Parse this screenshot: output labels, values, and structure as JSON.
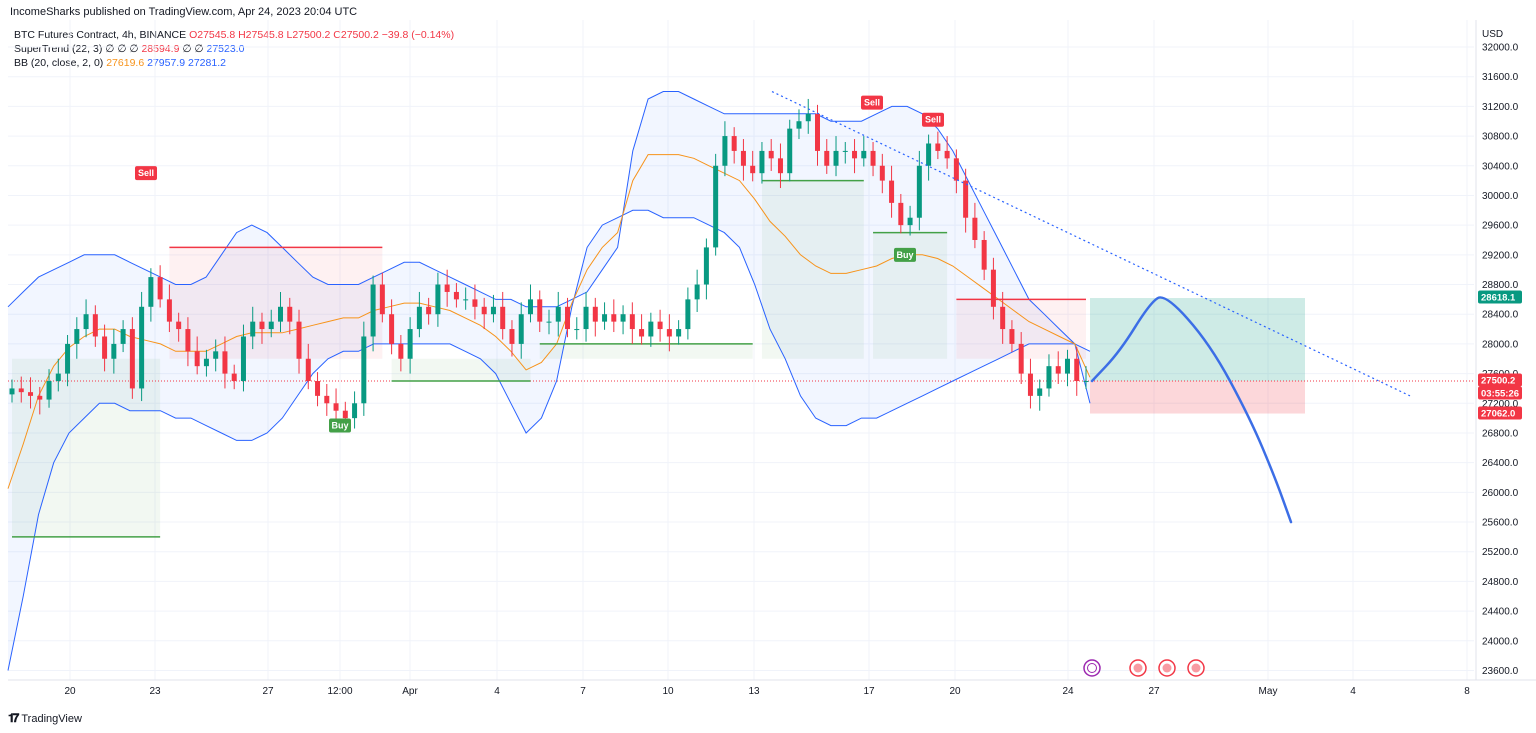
{
  "header": {
    "publisher": "IncomeSharks published on TradingView.com, Apr 24, 2023 20:04 UTC"
  },
  "legend": {
    "symbol": "BTC Futures Contract, 4h, BINANCE",
    "ohlc": "O27545.8 H27545.8 L27500.2 C27500.2 −39.8 (−0.14%)",
    "supertrend_label": "SuperTrend (22, 3)",
    "supertrend_vals": "28594.9",
    "supertrend_val2": "27523.0",
    "bb_label": "BB (20, close, 2, 0)",
    "bb_basis": "27619.6",
    "bb_upper": "27957.9",
    "bb_lower": "27281.2"
  },
  "brand": {
    "name": "TradingView"
  },
  "colors": {
    "up": "#089981",
    "down": "#f23645",
    "bb_band": "#2962ff",
    "bb_basis": "#f7931a",
    "st_up": "#43a047",
    "st_down": "#f23645",
    "projection": "#3c6ee6"
  },
  "chart_data": {
    "type": "candlestick",
    "currency": "USD",
    "y_ticks": [
      23600,
      24000,
      24400,
      24800,
      25200,
      25600,
      26000,
      26400,
      26800,
      27200,
      27600,
      28000,
      28400,
      28800,
      29200,
      29600,
      30000,
      30400,
      30800,
      31200,
      31600,
      32000
    ],
    "x_ticks": [
      "20",
      "23",
      "27",
      "12:00",
      "Apr",
      "4",
      "7",
      "10",
      "13",
      "17",
      "20",
      "24",
      "27",
      "May",
      "4",
      "8"
    ],
    "price_tags": [
      {
        "label": "28618.1",
        "value": 28618.1,
        "color": "#089981"
      },
      {
        "label": "27500.2",
        "value": 27500.2,
        "color": "#f23645"
      },
      {
        "label": "03:55:26",
        "value": 27330,
        "color": "#f23645"
      },
      {
        "label": "27062.0",
        "value": 27062.0,
        "color": "#f23645"
      }
    ],
    "signals": [
      {
        "label": "Sell",
        "type": "sell",
        "day": "Mar 22",
        "value": 30300
      },
      {
        "label": "Buy",
        "type": "buy",
        "day": "Mar 29",
        "value": 26900
      },
      {
        "label": "Sell",
        "type": "sell",
        "day": "Apr 16",
        "value": 31250
      },
      {
        "label": "Sell",
        "type": "sell",
        "day": "Apr 19",
        "value": 31020
      },
      {
        "label": "Buy",
        "type": "buy",
        "day": "Apr 17",
        "value": 29200
      }
    ],
    "position": {
      "entry": 27500.2,
      "target": 28618.1,
      "stop": 27062.0
    },
    "trendline": [
      {
        "date": "Apr 13",
        "value": 31400
      },
      {
        "date": "Apr 29",
        "value": 27300
      }
    ],
    "projection": [
      {
        "date": "Apr 24",
        "value": 27500
      },
      {
        "date": "Apr 25",
        "value": 27900
      },
      {
        "date": "Apr 26",
        "value": 28550
      },
      {
        "date": "Apr 27",
        "value": 28680
      },
      {
        "date": "Apr 28",
        "value": 28000
      },
      {
        "date": "Apr 29",
        "value": 27000
      },
      {
        "date": "Apr 30",
        "value": 26200
      },
      {
        "date": "May 1",
        "value": 25600
      }
    ],
    "close_series": [
      27400,
      27350,
      27300,
      27250,
      27500,
      27600,
      28000,
      28200,
      28400,
      28100,
      27800,
      28000,
      28200,
      27400,
      28500,
      28900,
      28600,
      28300,
      28200,
      27900,
      27700,
      27800,
      27900,
      27600,
      27500,
      28100,
      28300,
      28200,
      28300,
      28500,
      28300,
      27800,
      27500,
      27300,
      27200,
      27100,
      27000,
      27200,
      28100,
      28800,
      28400,
      28000,
      27800,
      28200,
      28500,
      28400,
      28800,
      28700,
      28600,
      28600,
      28500,
      28400,
      28500,
      28200,
      28000,
      28400,
      28600,
      28300,
      28300,
      28500,
      28200,
      28200,
      28500,
      28300,
      28400,
      28300,
      28400,
      28200,
      28100,
      28300,
      28200,
      28100,
      28200,
      28600,
      28800,
      29300,
      30400,
      30800,
      30600,
      30400,
      30300,
      30600,
      30500,
      30300,
      30900,
      31000,
      31100,
      30600,
      30400,
      30600,
      30600,
      30500,
      30600,
      30400,
      30200,
      29900,
      29600,
      29700,
      30400,
      30700,
      30600,
      30500,
      30200,
      29700,
      29400,
      29000,
      28500,
      28200,
      28000,
      27600,
      27300,
      27400,
      27700,
      27600,
      27800,
      27500,
      27500
    ],
    "bb_upper": [
      28500,
      28700,
      28900,
      29000,
      29100,
      29200,
      29200,
      29200,
      29100,
      29000,
      28900,
      28800,
      28800,
      28900,
      29200,
      29500,
      29600,
      29500,
      29300,
      29100,
      28900,
      28800,
      28800,
      28800,
      28900,
      29000,
      29100,
      29100,
      29000,
      28900,
      28800,
      28700,
      28600,
      28600,
      28500,
      28500,
      28500,
      28600,
      28700,
      29000,
      29300,
      30600,
      31300,
      31400,
      31400,
      31300,
      31200,
      31100,
      31100,
      31100,
      31100,
      31100,
      31100,
      31100,
      31000,
      31000,
      31000,
      31100,
      31200,
      31200,
      31100,
      30900,
      30600,
      30200,
      29800,
      29400,
      29000,
      28600,
      28400,
      28200,
      28000,
      27900
    ],
    "bb_lower": [
      23600,
      24600,
      25700,
      26400,
      26800,
      27000,
      27200,
      27200,
      27100,
      27100,
      27100,
      27000,
      27000,
      26900,
      26800,
      26700,
      26700,
      26800,
      27000,
      27300,
      27600,
      27800,
      27900,
      27900,
      28000,
      28000,
      28000,
      28000,
      28000,
      28000,
      27900,
      27800,
      27600,
      27200,
      26800,
      27000,
      27500,
      28500,
      29300,
      29600,
      29700,
      29800,
      29800,
      29700,
      29700,
      29700,
      29600,
      29500,
      29300,
      28800,
      28200,
      27800,
      27300,
      27000,
      26900,
      26900,
      27000,
      27000,
      27100,
      27200,
      27300,
      27400,
      27500,
      27600,
      27700,
      27800,
      27900,
      28000,
      28000,
      28000,
      28000,
      27200
    ]
  }
}
